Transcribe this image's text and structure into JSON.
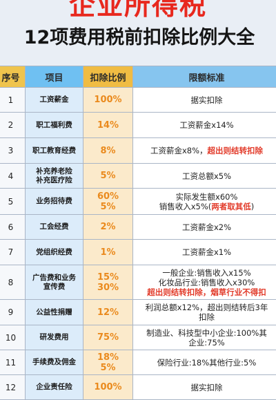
{
  "header": {
    "title": "企业所得税",
    "subtitle": "12项费用税前扣除比例大全"
  },
  "table": {
    "columns": [
      "序号",
      "项目",
      "扣除比例",
      "限额标准"
    ],
    "rows": [
      {
        "no": "1",
        "item": [
          "工资薪金"
        ],
        "rate": [
          "100%"
        ],
        "std": [
          [
            {
              "t": "据实扣除"
            }
          ]
        ]
      },
      {
        "no": "2",
        "item": [
          "职工福利费"
        ],
        "rate": [
          "14%"
        ],
        "std": [
          [
            {
              "t": "工资薪金x14%"
            }
          ]
        ]
      },
      {
        "no": "3",
        "item": [
          "职工教育经费"
        ],
        "rate": [
          "8%"
        ],
        "std": [
          [
            {
              "t": "工资薪金x8%，"
            },
            {
              "t": "超出则结转扣除",
              "red": true
            }
          ]
        ]
      },
      {
        "no": "4",
        "item": [
          "补充养老险",
          "补充医疗险"
        ],
        "rate": [
          "5%"
        ],
        "std": [
          [
            {
              "t": "工资总额x5%"
            }
          ]
        ]
      },
      {
        "no": "5",
        "item": [
          "业务招待费"
        ],
        "rate": [
          "60%",
          "5%"
        ],
        "std": [
          [
            {
              "t": "实际发生额x60%"
            }
          ],
          [
            {
              "t": "销售收入x5%("
            },
            {
              "t": "两者取其低",
              "red": true
            },
            {
              "t": ")"
            }
          ]
        ]
      },
      {
        "no": "6",
        "item": [
          "工会经费"
        ],
        "rate": [
          "2%"
        ],
        "std": [
          [
            {
              "t": "工资薪金x2%"
            }
          ]
        ]
      },
      {
        "no": "7",
        "item": [
          "党组织经费"
        ],
        "rate": [
          "1%"
        ],
        "std": [
          [
            {
              "t": "工资薪金x1%"
            }
          ]
        ]
      },
      {
        "no": "8",
        "item": [
          "广告费和业务",
          "宣传费"
        ],
        "rate": [
          "15%",
          "30%"
        ],
        "std": [
          [
            {
              "t": "一般企业:销售收入x15%"
            }
          ],
          [
            {
              "t": "化妆品行业:销售收入x30%"
            }
          ],
          [
            {
              "t": "超出则结转扣除，烟草行业不得扣",
              "red": true
            }
          ]
        ]
      },
      {
        "no": "9",
        "item": [
          "公益性捐赠"
        ],
        "rate": [
          "12%"
        ],
        "std": [
          [
            {
              "t": "利润总额x12%，超出则结转后3年"
            }
          ],
          [
            {
              "t": "扣除"
            }
          ]
        ]
      },
      {
        "no": "10",
        "item": [
          "研发费用"
        ],
        "rate": [
          "75%"
        ],
        "std": [
          [
            {
              "t": "制造业、科技型中小企业:100%其"
            }
          ],
          [
            {
              "t": "企业:75%"
            }
          ]
        ]
      },
      {
        "no": "11",
        "item": [
          "手续费及佣金"
        ],
        "rate": [
          "18%",
          "5%"
        ],
        "std": [
          [
            {
              "t": "保险行业:18%其他行业:5%"
            }
          ]
        ]
      },
      {
        "no": "12",
        "item": [
          "企业责任险"
        ],
        "rate": [
          "100%"
        ],
        "std": [
          [
            {
              "t": "据实扣除"
            }
          ]
        ]
      }
    ]
  }
}
